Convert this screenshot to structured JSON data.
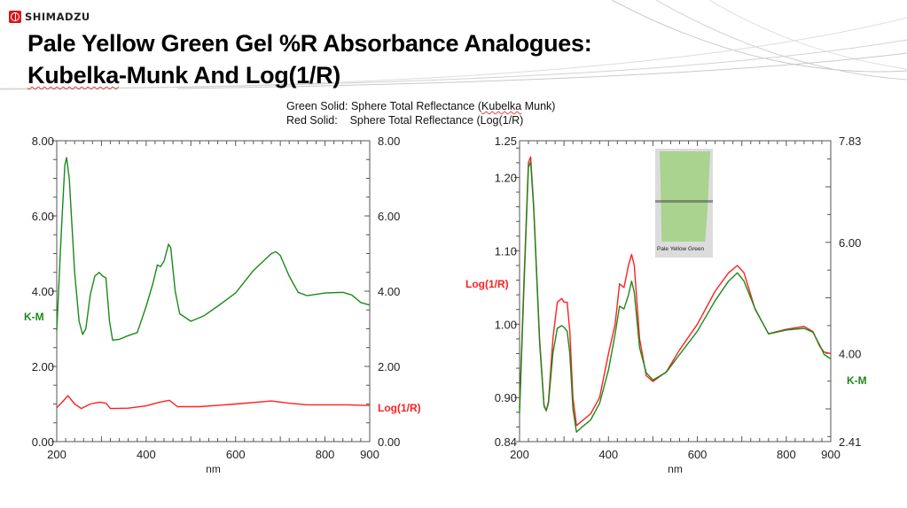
{
  "header": {
    "brand": "SHIMADZU",
    "title_line1": "Pale Yellow Green Gel %R Absorbance Analogues:",
    "title_line2_a": "Kubelka",
    "title_line2_b": "-Munk And Log(1/R)"
  },
  "legend": {
    "green_prefix": "Green Solid: Sphere Total Reflectance (",
    "green_key": "Kubelka",
    "green_suffix": " Munk)",
    "red_line": "Red Solid:    Sphere Total Reflectance (Log(1/R)"
  },
  "inset": {
    "caption": "Pale Yellow Green"
  },
  "colors": {
    "green": "#1a8a1a",
    "red": "#ff2020",
    "axis": "#555555"
  },
  "chart_data": [
    {
      "type": "line",
      "title": "",
      "xlabel": "nm",
      "ylabel_left": "K-M",
      "ylabel_right": "Log(1/R)",
      "xlim": [
        200,
        900
      ],
      "ylim_left": [
        0,
        8
      ],
      "ylim_right": [
        0,
        8
      ],
      "x_ticks": [
        "200",
        "400",
        "600",
        "800",
        "900"
      ],
      "y_ticks_left": [
        "0.00",
        "2.00",
        "4.00",
        "6.00",
        "8.00"
      ],
      "y_ticks_right": [
        "0.00",
        "2.00",
        "4.00",
        "6.00",
        "8.00"
      ],
      "series": [
        {
          "name": "K-M",
          "color": "#1a8a1a",
          "axis": "left",
          "points": [
            [
              200,
              2.95
            ],
            [
              210,
              5.5
            ],
            [
              218,
              7.35
            ],
            [
              222,
              7.55
            ],
            [
              228,
              7.0
            ],
            [
              240,
              4.5
            ],
            [
              250,
              3.2
            ],
            [
              258,
              2.85
            ],
            [
              265,
              3.0
            ],
            [
              275,
              3.9
            ],
            [
              285,
              4.4
            ],
            [
              295,
              4.5
            ],
            [
              303,
              4.4
            ],
            [
              310,
              4.35
            ],
            [
              318,
              3.2
            ],
            [
              325,
              2.7
            ],
            [
              340,
              2.72
            ],
            [
              360,
              2.82
            ],
            [
              380,
              2.9
            ],
            [
              400,
              3.6
            ],
            [
              415,
              4.2
            ],
            [
              425,
              4.7
            ],
            [
              432,
              4.65
            ],
            [
              440,
              4.8
            ],
            [
              450,
              5.25
            ],
            [
              455,
              5.15
            ],
            [
              465,
              4.0
            ],
            [
              475,
              3.4
            ],
            [
              500,
              3.2
            ],
            [
              530,
              3.35
            ],
            [
              560,
              3.6
            ],
            [
              600,
              3.95
            ],
            [
              640,
              4.55
            ],
            [
              680,
              5.0
            ],
            [
              690,
              5.05
            ],
            [
              700,
              4.95
            ],
            [
              720,
              4.4
            ],
            [
              740,
              3.97
            ],
            [
              760,
              3.88
            ],
            [
              800,
              3.95
            ],
            [
              840,
              3.97
            ],
            [
              860,
              3.9
            ],
            [
              880,
              3.7
            ],
            [
              900,
              3.63
            ]
          ]
        },
        {
          "name": "Log(1/R)",
          "color": "#ff2020",
          "axis": "right",
          "points": [
            [
              200,
              0.9
            ],
            [
              212,
              1.05
            ],
            [
              225,
              1.22
            ],
            [
              240,
              1.0
            ],
            [
              255,
              0.88
            ],
            [
              275,
              1.0
            ],
            [
              295,
              1.05
            ],
            [
              310,
              1.02
            ],
            [
              320,
              0.88
            ],
            [
              360,
              0.89
            ],
            [
              400,
              0.95
            ],
            [
              430,
              1.05
            ],
            [
              452,
              1.1
            ],
            [
              470,
              0.93
            ],
            [
              520,
              0.93
            ],
            [
              600,
              1.0
            ],
            [
              680,
              1.08
            ],
            [
              720,
              1.02
            ],
            [
              760,
              0.98
            ],
            [
              850,
              0.98
            ],
            [
              900,
              0.96
            ]
          ]
        }
      ]
    },
    {
      "type": "line",
      "title": "",
      "xlabel": "nm",
      "ylabel_left": "Log(1/R)",
      "ylabel_right": "K-M",
      "xlim": [
        200,
        900
      ],
      "ylim_left": [
        0.84,
        1.25
      ],
      "ylim_right": [
        2.41,
        7.83
      ],
      "x_ticks": [
        "200",
        "400",
        "600",
        "800",
        "900"
      ],
      "y_ticks_left": [
        "0.84",
        "0.90",
        "1.00",
        "1.10",
        "1.20",
        "1.25"
      ],
      "y_ticks_right": [
        "2.41",
        "4.00",
        "6.00",
        "7.83"
      ],
      "series": [
        {
          "name": "Log(1/R)",
          "color": "#ff2020",
          "axis": "left",
          "points": [
            [
              200,
              0.885
            ],
            [
              210,
              1.06
            ],
            [
              220,
              1.22
            ],
            [
              225,
              1.228
            ],
            [
              232,
              1.16
            ],
            [
              245,
              0.98
            ],
            [
              255,
              0.89
            ],
            [
              260,
              0.882
            ],
            [
              265,
              0.895
            ],
            [
              275,
              0.98
            ],
            [
              285,
              1.03
            ],
            [
              295,
              1.035
            ],
            [
              300,
              1.03
            ],
            [
              307,
              1.03
            ],
            [
              313,
              0.99
            ],
            [
              320,
              0.9
            ],
            [
              328,
              0.862
            ],
            [
              340,
              0.868
            ],
            [
              360,
              0.878
            ],
            [
              380,
              0.9
            ],
            [
              400,
              0.96
            ],
            [
              415,
              1.0
            ],
            [
              425,
              1.055
            ],
            [
              435,
              1.05
            ],
            [
              445,
              1.08
            ],
            [
              452,
              1.095
            ],
            [
              458,
              1.08
            ],
            [
              470,
              0.98
            ],
            [
              485,
              0.93
            ],
            [
              500,
              0.922
            ],
            [
              530,
              0.935
            ],
            [
              560,
              0.965
            ],
            [
              600,
              1.0
            ],
            [
              640,
              1.045
            ],
            [
              670,
              1.07
            ],
            [
              690,
              1.08
            ],
            [
              705,
              1.07
            ],
            [
              730,
              1.02
            ],
            [
              760,
              0.987
            ],
            [
              800,
              0.993
            ],
            [
              840,
              0.997
            ],
            [
              860,
              0.99
            ],
            [
              875,
              0.97
            ],
            [
              885,
              0.962
            ],
            [
              900,
              0.96
            ]
          ]
        },
        {
          "name": "K-M",
          "color": "#1a8a1a",
          "axis": "right",
          "points": [
            [
              200,
              2.92
            ],
            [
              210,
              5.2
            ],
            [
              220,
              7.35
            ],
            [
              225,
              7.45
            ],
            [
              232,
              6.6
            ],
            [
              245,
              4.2
            ],
            [
              255,
              3.05
            ],
            [
              260,
              2.97
            ],
            [
              265,
              3.1
            ],
            [
              275,
              4.0
            ],
            [
              285,
              4.45
            ],
            [
              295,
              4.5
            ],
            [
              300,
              4.47
            ],
            [
              307,
              4.4
            ],
            [
              313,
              4.0
            ],
            [
              320,
              3.0
            ],
            [
              328,
              2.58
            ],
            [
              340,
              2.67
            ],
            [
              360,
              2.8
            ],
            [
              380,
              3.1
            ],
            [
              400,
              3.7
            ],
            [
              415,
              4.35
            ],
            [
              425,
              4.85
            ],
            [
              435,
              4.8
            ],
            [
              445,
              5.05
            ],
            [
              452,
              5.3
            ],
            [
              458,
              5.1
            ],
            [
              470,
              4.1
            ],
            [
              485,
              3.65
            ],
            [
              500,
              3.52
            ],
            [
              530,
              3.66
            ],
            [
              560,
              3.98
            ],
            [
              600,
              4.4
            ],
            [
              640,
              4.95
            ],
            [
              670,
              5.3
            ],
            [
              690,
              5.45
            ],
            [
              705,
              5.3
            ],
            [
              730,
              4.8
            ],
            [
              760,
              4.35
            ],
            [
              800,
              4.42
            ],
            [
              840,
              4.45
            ],
            [
              860,
              4.38
            ],
            [
              875,
              4.15
            ],
            [
              885,
              3.98
            ],
            [
              900,
              3.9
            ]
          ]
        }
      ]
    }
  ]
}
